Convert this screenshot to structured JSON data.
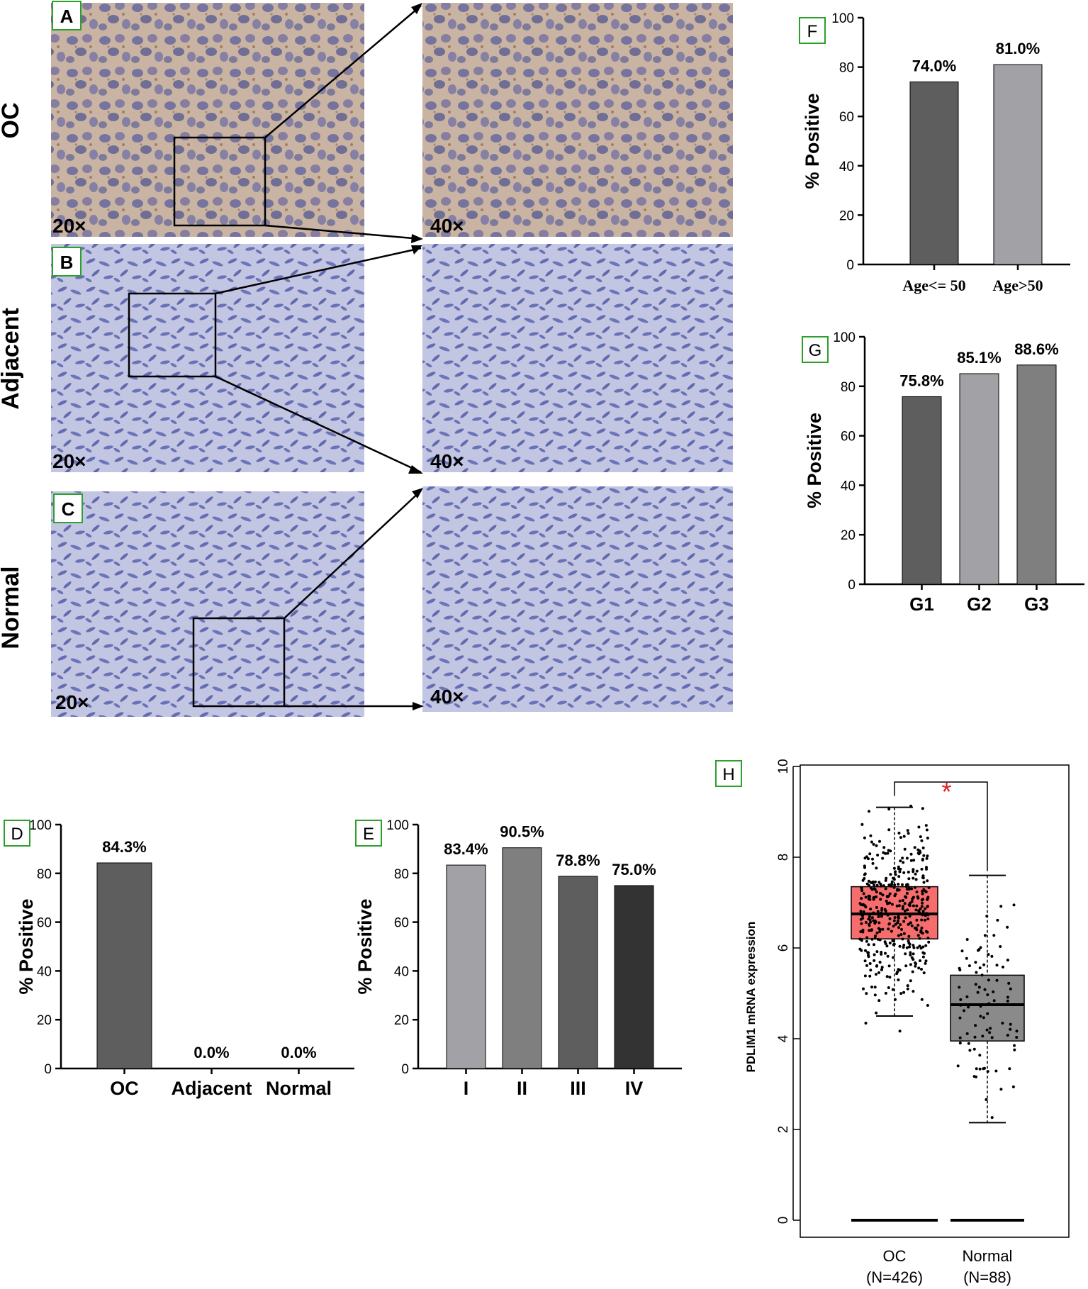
{
  "colors": {
    "panel_label_border": "#2ca02c",
    "oc_box": "#f76d6d",
    "normal_box": "#8a8a8a",
    "asterisk": "#e02020",
    "tissue_oc": "#a48a7c",
    "tissue_blue": "#6a72b8"
  },
  "micrographs": {
    "rows": [
      {
        "panel": "A",
        "row_label": "OC",
        "mag_left": "20×",
        "mag_right": "40×"
      },
      {
        "panel": "B",
        "row_label": "Adjacent",
        "mag_left": "20×",
        "mag_right": "40×"
      },
      {
        "panel": "C",
        "row_label": "Normal",
        "mag_left": "20×",
        "mag_right": "40×"
      }
    ]
  },
  "chart_data": [
    {
      "panel": "D",
      "type": "bar",
      "categories": [
        "OC",
        "Adjacent",
        "Normal"
      ],
      "values": [
        84.3,
        0.0,
        0.0
      ],
      "value_labels": [
        "84.3%",
        "0.0%",
        "0.0%"
      ],
      "colors": [
        "#5e5e5e",
        "#5e5e5e",
        "#5e5e5e"
      ],
      "ylabel": "% Positive",
      "ylim": [
        0,
        100
      ],
      "yticks": [
        0,
        20,
        40,
        60,
        80,
        100
      ]
    },
    {
      "panel": "E",
      "type": "bar",
      "categories": [
        "I",
        "II",
        "III",
        "IV"
      ],
      "values": [
        83.4,
        90.5,
        78.8,
        75.0
      ],
      "value_labels": [
        "83.4%",
        "90.5%",
        "78.8%",
        "75.0%"
      ],
      "colors": [
        "#a2a2a6",
        "#7f7f7f",
        "#5e5e5e",
        "#333333"
      ],
      "ylabel": "% Positive",
      "ylim": [
        0,
        100
      ],
      "yticks": [
        0,
        20,
        40,
        60,
        80,
        100
      ]
    },
    {
      "panel": "F",
      "type": "bar",
      "categories": [
        "Age<= 50",
        "Age>50"
      ],
      "values": [
        74.0,
        81.0
      ],
      "value_labels": [
        "74.0%",
        "81.0%"
      ],
      "colors": [
        "#5e5e5e",
        "#a2a2a6"
      ],
      "ylabel": "% Positive",
      "ylim": [
        0,
        100
      ],
      "yticks": [
        0,
        20,
        40,
        60,
        80,
        100
      ]
    },
    {
      "panel": "G",
      "type": "bar",
      "categories": [
        "G1",
        "G2",
        "G3"
      ],
      "values": [
        75.8,
        85.1,
        88.6
      ],
      "value_labels": [
        "75.8%",
        "85.1%",
        "88.6%"
      ],
      "colors": [
        "#5e5e5e",
        "#a2a2a6",
        "#7f7f7f"
      ],
      "ylabel": "% Positive",
      "ylim": [
        0,
        100
      ],
      "yticks": [
        0,
        20,
        40,
        60,
        80,
        100
      ]
    },
    {
      "panel": "H",
      "type": "box",
      "categories": [
        "OC\n(N=426)",
        "Normal\n(N=88)"
      ],
      "category_lines": [
        [
          "OC",
          "(N=426)"
        ],
        [
          "Normal",
          "(N=88)"
        ]
      ],
      "ylabel": "PDLIM1 mRNA expression",
      "ylim": [
        0,
        10
      ],
      "yticks": [
        0,
        2,
        4,
        6,
        8,
        10
      ],
      "annotation": "*",
      "boxes": [
        {
          "name": "OC",
          "n": 426,
          "min": 4.5,
          "q1": 6.2,
          "median": 6.75,
          "q3": 7.35,
          "max": 9.1,
          "points_range": [
            3.85,
            9.25
          ]
        },
        {
          "name": "Normal",
          "n": 88,
          "min": 2.15,
          "q1": 3.95,
          "median": 4.75,
          "q3": 5.4,
          "max": 7.6,
          "points_range": [
            2.2,
            7.7
          ]
        }
      ]
    }
  ]
}
